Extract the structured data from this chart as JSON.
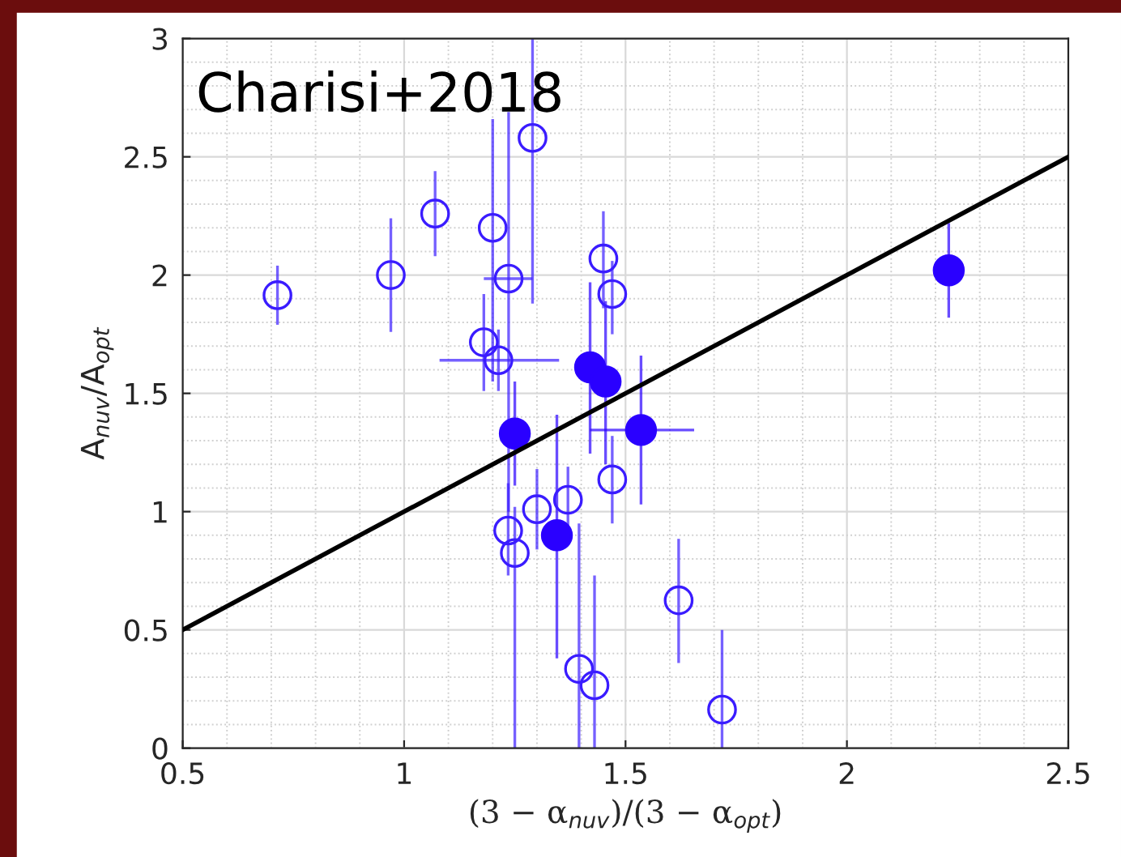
{
  "chart_data": {
    "type": "scatter",
    "xlabel": "(3 − α$_{nuv}$)/(3 − α$_{opt}$)",
    "ylabel": "A$_{nuv}$/A$_{opt}$",
    "annotations": [
      "Charisi+2018"
    ],
    "xlim": [
      0.5,
      2.5
    ],
    "ylim": [
      0,
      3
    ],
    "xticks": [
      0.5,
      1,
      1.5,
      2,
      2.5
    ],
    "yticks": [
      0,
      0.5,
      1,
      1.5,
      2,
      2.5,
      3
    ],
    "grid": true,
    "series": [
      {
        "color": "#3a1cff",
        "marker": "circle",
        "x": [
          0.714,
          0.97,
          1.07,
          1.2,
          1.236,
          1.29,
          1.18,
          1.213,
          1.45,
          1.47,
          1.47,
          1.37,
          1.3,
          1.235,
          1.25,
          1.395,
          1.43,
          1.62,
          1.718
        ],
        "values": [
          1.915,
          2.0,
          2.26,
          2.2,
          1.985,
          2.58,
          1.716,
          1.64,
          2.07,
          1.92,
          1.136,
          1.05,
          1.01,
          0.92,
          0.825,
          0.335,
          0.266,
          0.625,
          0.163
        ],
        "errors": [
          [
            1.79,
            2.04
          ],
          [
            1.76,
            2.24
          ],
          [
            2.08,
            2.44
          ],
          [
            1.55,
            2.66
          ],
          [
            1.0,
            2.69
          ],
          [
            1.88,
            3.0
          ],
          [
            1.51,
            1.92
          ],
          [
            1.51,
            1.77
          ],
          [
            1.86,
            2.27
          ],
          [
            1.75,
            2.06
          ],
          [
            0.95,
            1.32
          ],
          [
            0.91,
            1.19
          ],
          [
            0.84,
            1.18
          ],
          [
            0.73,
            1.12
          ],
          [
            0.0,
            1.02
          ],
          [
            0.0,
            0.95
          ],
          [
            0.0,
            0.73
          ],
          [
            0.36,
            0.885
          ],
          [
            0.0,
            0.5
          ]
        ],
        "xerrors": [
          null,
          null,
          null,
          null,
          [
            1.18,
            1.29
          ],
          null,
          null,
          [
            1.08,
            1.35
          ],
          null,
          null,
          null,
          null,
          null,
          null,
          null,
          null,
          null,
          null,
          null
        ]
      },
      {
        "color": "#2a00ff",
        "marker": "circle",
        "x": [
          1.25,
          1.345,
          1.42,
          1.455,
          1.535,
          2.23
        ],
        "values": [
          1.33,
          0.9,
          1.61,
          1.55,
          1.345,
          2.02
        ],
        "errors": [
          [
            1.11,
            1.55
          ],
          [
            0.38,
            1.41
          ],
          [
            1.245,
            1.97
          ],
          [
            1.2,
            1.89
          ],
          [
            1.03,
            1.66
          ],
          [
            1.82,
            2.22
          ]
        ],
        "xerrors": [
          null,
          null,
          null,
          null,
          [
            1.42,
            1.655
          ],
          null
        ]
      },
      {
        "type": "line",
        "marker": "none",
        "color": "#000000",
        "x": [
          0.5,
          2.5
        ],
        "values": [
          0.5,
          2.5
        ]
      }
    ]
  }
}
